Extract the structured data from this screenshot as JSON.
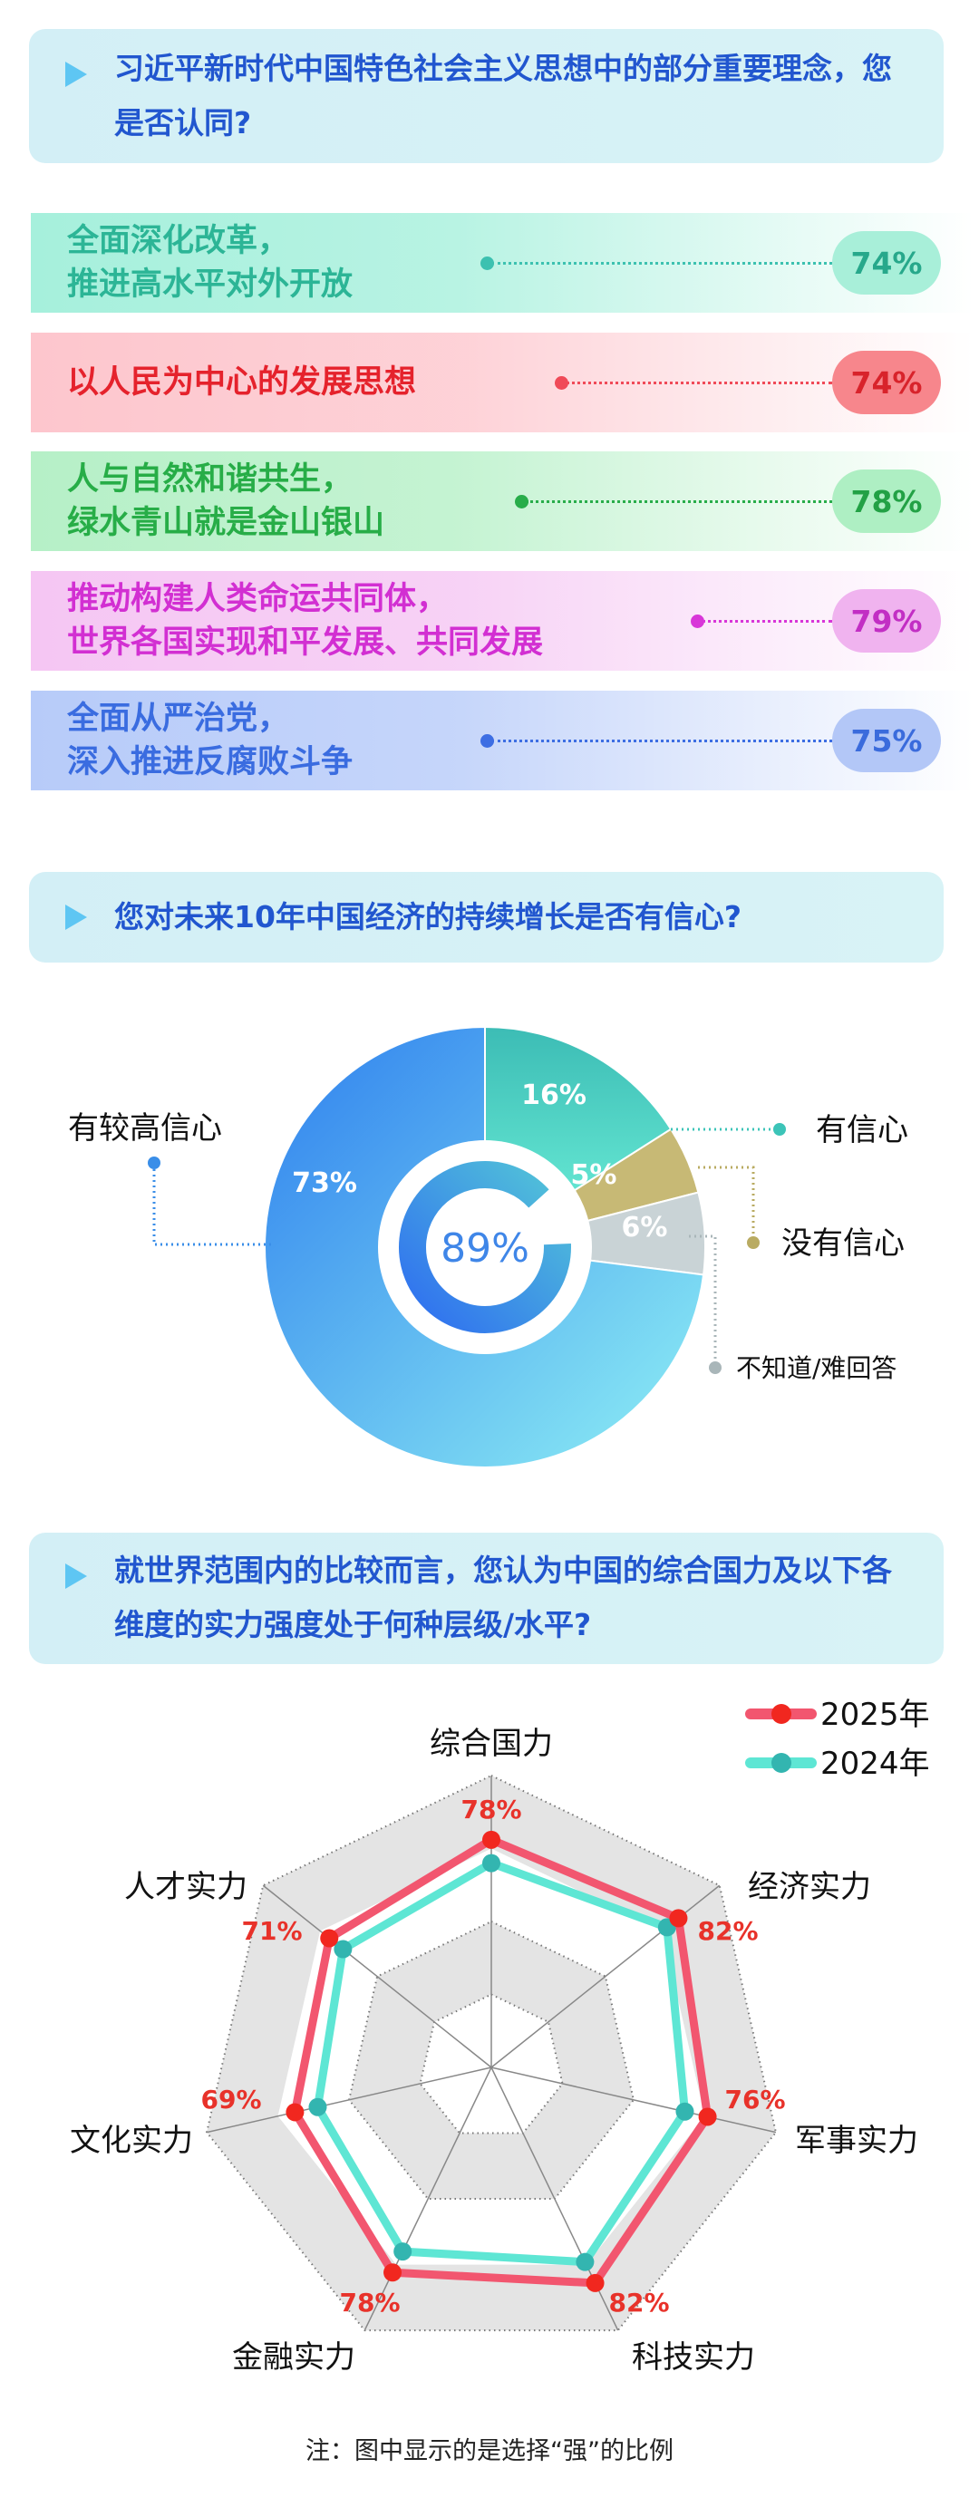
{
  "section1": {
    "title": "习近平新时代中国特色社会主义思想中的部分重要理念，您是否认同?",
    "items": [
      {
        "label": "全面深化改革，\n推进高水平对外开放",
        "value": "74%",
        "text_color": "#2cb596",
        "bg": "#a6f0dc",
        "dot": "#3cc1b0",
        "pill_bg": "#a8efd9",
        "pill_text": "#27a88b"
      },
      {
        "label": "以人民为中心的发展思想",
        "value": "74%",
        "text_color": "#e5222c",
        "bg": "#fdc6cd",
        "dot": "#f04a58",
        "pill_bg": "#f7868c",
        "pill_text": "#d8232b"
      },
      {
        "label": "人与自然和谐共生，\n绿水青山就是金山银山",
        "value": "78%",
        "text_color": "#27ad47",
        "bg": "#b6f0c7",
        "dot": "#28ad4a",
        "pill_bg": "#aeefc3",
        "pill_text": "#22a145"
      },
      {
        "label": "推动构建人类命运共同体，\n世界各国实现和平发展、共同发展",
        "value": "79%",
        "text_color": "#d22fd2",
        "bg": "#f5c6f3",
        "dot": "#d836d8",
        "pill_bg": "#f0b3ef",
        "pill_text": "#c22ec4"
      },
      {
        "label": "全面从严治党，\n深入推进反腐败斗争",
        "value": "75%",
        "text_color": "#3a6ce0",
        "bg": "#b7cbf9",
        "dot": "#3d6ee3",
        "pill_bg": "#b3c7f7",
        "pill_text": "#3a6bdc"
      }
    ]
  },
  "section2": {
    "title": "您对未来10年中国经济的持续增长是否有信心?",
    "center_value": "89%",
    "chart_data": {
      "type": "pie",
      "slices": [
        {
          "label": "有信心",
          "value": 16,
          "value_label": "16%",
          "color": "#52dfc9"
        },
        {
          "label": "没有信心",
          "value": 5,
          "value_label": "5%",
          "color": "#c7b975"
        },
        {
          "label": "不知道/难回答",
          "value": 6,
          "value_label": "6%",
          "color": "#c9d3d6"
        },
        {
          "label": "有较高信心",
          "value": 73,
          "value_label": "73%",
          "color": "#3e96f2"
        }
      ],
      "inner_ring_value": 89
    }
  },
  "section3": {
    "title": "就世界范围内的比较而言，您认为中国的综合国力及以下各维度的实力强度处于何种层级/水平?",
    "note": "注：图中显示的是选择“强”的比例",
    "chart_data": {
      "type": "radar",
      "axes": [
        "综合国力",
        "经济实力",
        "军事实力",
        "科技实力",
        "金融实力",
        "文化实力",
        "人才实力"
      ],
      "range": [
        0,
        100
      ],
      "legend_position": "top-right",
      "series": [
        {
          "name": "2025年",
          "color": "#f2566f",
          "marker": "#f1271f",
          "values": [
            78,
            82,
            76,
            82,
            78,
            69,
            71
          ],
          "labels": [
            "78%",
            "82%",
            "76%",
            "82%",
            "78%",
            "69%",
            "71%"
          ]
        },
        {
          "name": "2024年",
          "color": "#5ee6d4",
          "marker": "#33b5b0",
          "values": [
            70,
            77,
            68,
            74,
            70,
            61,
            65
          ]
        }
      ]
    }
  }
}
